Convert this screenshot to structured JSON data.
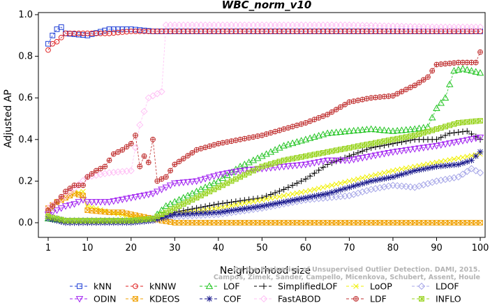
{
  "chart_data": {
    "type": "line",
    "title": "WBC_norm_v10",
    "xlabel": "Neighborhood size",
    "ylabel": "Adjusted AP",
    "xlim": [
      1,
      100
    ],
    "ylim": [
      -0.02,
      1.0
    ],
    "xticks": [
      "1",
      "10",
      "20",
      "30",
      "40",
      "50",
      "60",
      "70",
      "80",
      "90",
      "100"
    ],
    "yticks": [
      "0.0",
      "0.2",
      "0.4",
      "0.6",
      "0.8",
      "1.0"
    ],
    "watermark": [
      "Campos, Zimek, Sander, Campello, Micenkova, Schubert, Assent, Houle",
      "On the Evaluation of Unsupervised Outlier Detection. DAMI, 2015."
    ],
    "series": [
      {
        "name": "kNN",
        "color": "#1f3fd6",
        "marker": "square",
        "points": [
          [
            1,
            0.86
          ],
          [
            2,
            0.9
          ],
          [
            3,
            0.93
          ],
          [
            4,
            0.94
          ],
          [
            5,
            0.91
          ],
          [
            10,
            0.9
          ],
          [
            15,
            0.93
          ],
          [
            20,
            0.93
          ],
          [
            25,
            0.92
          ],
          [
            30,
            0.92
          ],
          [
            40,
            0.92
          ],
          [
            50,
            0.92
          ],
          [
            60,
            0.92
          ],
          [
            70,
            0.92
          ],
          [
            80,
            0.92
          ],
          [
            90,
            0.92
          ],
          [
            100,
            0.92
          ]
        ]
      },
      {
        "name": "kNNW",
        "color": "#e02222",
        "marker": "circle",
        "points": [
          [
            1,
            0.83
          ],
          [
            2,
            0.86
          ],
          [
            3,
            0.87
          ],
          [
            4,
            0.89
          ],
          [
            5,
            0.91
          ],
          [
            10,
            0.91
          ],
          [
            15,
            0.91
          ],
          [
            20,
            0.92
          ],
          [
            30,
            0.92
          ],
          [
            50,
            0.92
          ],
          [
            70,
            0.92
          ],
          [
            90,
            0.92
          ],
          [
            100,
            0.92
          ]
        ]
      },
      {
        "name": "LOF",
        "color": "#22c422",
        "marker": "triangle-up",
        "points": [
          [
            1,
            0.02
          ],
          [
            5,
            0.01
          ],
          [
            10,
            0.01
          ],
          [
            20,
            0.01
          ],
          [
            25,
            0.02
          ],
          [
            28,
            0.08
          ],
          [
            35,
            0.15
          ],
          [
            40,
            0.2
          ],
          [
            45,
            0.27
          ],
          [
            50,
            0.32
          ],
          [
            55,
            0.37
          ],
          [
            60,
            0.4
          ],
          [
            65,
            0.43
          ],
          [
            70,
            0.44
          ],
          [
            75,
            0.45
          ],
          [
            80,
            0.44
          ],
          [
            85,
            0.45
          ],
          [
            88,
            0.46
          ],
          [
            90,
            0.55
          ],
          [
            92,
            0.6
          ],
          [
            94,
            0.73
          ],
          [
            96,
            0.74
          ],
          [
            100,
            0.72
          ]
        ]
      },
      {
        "name": "SimplifiedLOF",
        "color": "#000000",
        "marker": "plus",
        "points": [
          [
            1,
            0.02
          ],
          [
            5,
            0.0
          ],
          [
            10,
            0.0
          ],
          [
            20,
            0.01
          ],
          [
            25,
            0.02
          ],
          [
            30,
            0.05
          ],
          [
            40,
            0.09
          ],
          [
            50,
            0.12
          ],
          [
            55,
            0.16
          ],
          [
            60,
            0.21
          ],
          [
            65,
            0.28
          ],
          [
            70,
            0.32
          ],
          [
            75,
            0.36
          ],
          [
            80,
            0.38
          ],
          [
            85,
            0.4
          ],
          [
            90,
            0.4
          ],
          [
            93,
            0.43
          ],
          [
            97,
            0.44
          ],
          [
            100,
            0.4
          ]
        ]
      },
      {
        "name": "LoOP",
        "color": "#f0f000",
        "marker": "x",
        "points": [
          [
            1,
            0.04
          ],
          [
            3,
            0.09
          ],
          [
            5,
            0.12
          ],
          [
            7,
            0.14
          ],
          [
            9,
            0.15
          ],
          [
            10,
            0.08
          ],
          [
            15,
            0.05
          ],
          [
            20,
            0.03
          ],
          [
            25,
            0.02
          ],
          [
            30,
            0.04
          ],
          [
            40,
            0.07
          ],
          [
            50,
            0.11
          ],
          [
            60,
            0.15
          ],
          [
            70,
            0.2
          ],
          [
            80,
            0.25
          ],
          [
            90,
            0.29
          ],
          [
            100,
            0.33
          ]
        ]
      },
      {
        "name": "LDOF",
        "color": "#a8a8e8",
        "marker": "diamond",
        "points": [
          [
            1,
            0.03
          ],
          [
            5,
            0.01
          ],
          [
            10,
            0.01
          ],
          [
            20,
            0.01
          ],
          [
            25,
            0.02
          ],
          [
            30,
            0.03
          ],
          [
            40,
            0.04
          ],
          [
            50,
            0.07
          ],
          [
            60,
            0.11
          ],
          [
            70,
            0.13
          ],
          [
            75,
            0.16
          ],
          [
            80,
            0.18
          ],
          [
            85,
            0.17
          ],
          [
            90,
            0.2
          ],
          [
            95,
            0.22
          ],
          [
            98,
            0.26
          ],
          [
            100,
            0.24
          ]
        ]
      },
      {
        "name": "ODIN",
        "color": "#a020f0",
        "marker": "triangle-down",
        "points": [
          [
            1,
            0.04
          ],
          [
            3,
            0.06
          ],
          [
            5,
            0.08
          ],
          [
            7,
            0.09
          ],
          [
            9,
            0.11
          ],
          [
            10,
            0.1
          ],
          [
            15,
            0.1
          ],
          [
            20,
            0.12
          ],
          [
            25,
            0.14
          ],
          [
            30,
            0.19
          ],
          [
            35,
            0.2
          ],
          [
            40,
            0.23
          ],
          [
            45,
            0.25
          ],
          [
            50,
            0.26
          ],
          [
            55,
            0.27
          ],
          [
            60,
            0.28
          ],
          [
            65,
            0.3
          ],
          [
            70,
            0.3
          ],
          [
            80,
            0.34
          ],
          [
            90,
            0.37
          ],
          [
            100,
            0.41
          ]
        ]
      },
      {
        "name": "KDEOS",
        "color": "#f0a000",
        "marker": "square-x",
        "points": [
          [
            1,
            0.07
          ],
          [
            3,
            0.1
          ],
          [
            5,
            0.12
          ],
          [
            7,
            0.14
          ],
          [
            9,
            0.13
          ],
          [
            10,
            0.06
          ],
          [
            15,
            0.05
          ],
          [
            18,
            0.05
          ],
          [
            20,
            0.04
          ],
          [
            25,
            0.02
          ],
          [
            27,
            0.01
          ],
          [
            30,
            0.0
          ],
          [
            40,
            0.0
          ],
          [
            60,
            0.0
          ],
          [
            80,
            0.0
          ],
          [
            100,
            0.0
          ]
        ]
      },
      {
        "name": "COF",
        "color": "#1a1a8c",
        "marker": "asterisk",
        "points": [
          [
            1,
            0.02
          ],
          [
            5,
            0.0
          ],
          [
            10,
            0.0
          ],
          [
            20,
            0.0
          ],
          [
            25,
            0.01
          ],
          [
            30,
            0.04
          ],
          [
            40,
            0.05
          ],
          [
            50,
            0.08
          ],
          [
            55,
            0.1
          ],
          [
            60,
            0.12
          ],
          [
            65,
            0.14
          ],
          [
            70,
            0.17
          ],
          [
            75,
            0.2
          ],
          [
            80,
            0.22
          ],
          [
            85,
            0.25
          ],
          [
            90,
            0.27
          ],
          [
            95,
            0.28
          ],
          [
            98,
            0.3
          ],
          [
            100,
            0.34
          ]
        ]
      },
      {
        "name": "FastABOD",
        "color": "#ffc0f5",
        "marker": "diamond",
        "points": [
          [
            1,
            0.07
          ],
          [
            5,
            0.13
          ],
          [
            10,
            0.22
          ],
          [
            15,
            0.24
          ],
          [
            20,
            0.25
          ],
          [
            22,
            0.47
          ],
          [
            24,
            0.6
          ],
          [
            27,
            0.63
          ],
          [
            28,
            0.95
          ],
          [
            35,
            0.95
          ],
          [
            50,
            0.95
          ],
          [
            70,
            0.95
          ],
          [
            90,
            0.94
          ],
          [
            100,
            0.94
          ]
        ]
      },
      {
        "name": "LDF",
        "color": "#c03030",
        "marker": "circle-plus",
        "points": [
          [
            1,
            0.06
          ],
          [
            3,
            0.1
          ],
          [
            5,
            0.15
          ],
          [
            7,
            0.18
          ],
          [
            9,
            0.18
          ],
          [
            10,
            0.22
          ],
          [
            12,
            0.25
          ],
          [
            14,
            0.27
          ],
          [
            16,
            0.33
          ],
          [
            18,
            0.35
          ],
          [
            20,
            0.38
          ],
          [
            21,
            0.42
          ],
          [
            22,
            0.27
          ],
          [
            23,
            0.32
          ],
          [
            24,
            0.29
          ],
          [
            25,
            0.4
          ],
          [
            26,
            0.2
          ],
          [
            28,
            0.22
          ],
          [
            30,
            0.28
          ],
          [
            35,
            0.35
          ],
          [
            40,
            0.38
          ],
          [
            45,
            0.4
          ],
          [
            50,
            0.42
          ],
          [
            55,
            0.45
          ],
          [
            60,
            0.48
          ],
          [
            65,
            0.52
          ],
          [
            70,
            0.58
          ],
          [
            75,
            0.6
          ],
          [
            80,
            0.61
          ],
          [
            85,
            0.66
          ],
          [
            88,
            0.7
          ],
          [
            90,
            0.76
          ],
          [
            95,
            0.77
          ],
          [
            99,
            0.77
          ],
          [
            100,
            0.82
          ]
        ]
      },
      {
        "name": "INFLO",
        "color": "#99d420",
        "marker": "box-x",
        "points": [
          [
            1,
            0.03
          ],
          [
            5,
            0.01
          ],
          [
            10,
            0.01
          ],
          [
            20,
            0.01
          ],
          [
            25,
            0.02
          ],
          [
            30,
            0.07
          ],
          [
            35,
            0.12
          ],
          [
            40,
            0.17
          ],
          [
            45,
            0.22
          ],
          [
            50,
            0.27
          ],
          [
            55,
            0.3
          ],
          [
            60,
            0.32
          ],
          [
            65,
            0.34
          ],
          [
            70,
            0.36
          ],
          [
            75,
            0.38
          ],
          [
            80,
            0.4
          ],
          [
            85,
            0.42
          ],
          [
            90,
            0.45
          ],
          [
            95,
            0.48
          ],
          [
            100,
            0.49
          ]
        ]
      }
    ],
    "legend": {
      "placement": "bottom",
      "rows": [
        [
          "kNN",
          "kNNW",
          "LOF",
          "SimplifiedLOF",
          "LoOP",
          "LDOF"
        ],
        [
          "ODIN",
          "KDEOS",
          "COF",
          "FastABOD",
          "LDF",
          "INFLO"
        ]
      ]
    }
  }
}
